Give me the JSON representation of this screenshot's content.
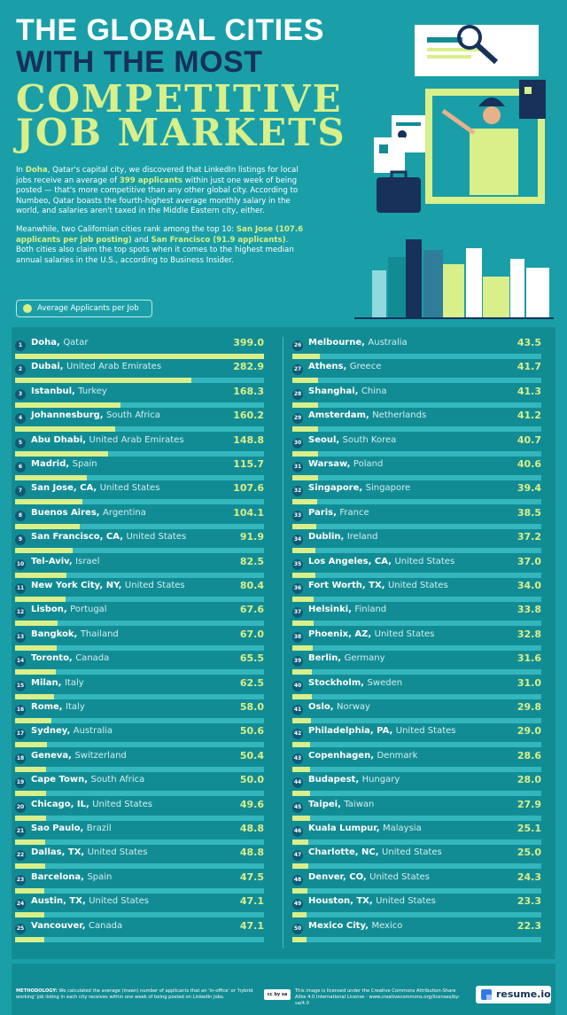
{
  "title": {
    "line1": "THE GLOBAL CITIES",
    "line2": "WITH THE MOST",
    "line3": "COMPETITIVE",
    "line4": "JOB MARKETS"
  },
  "intro": {
    "p1_a": "In ",
    "p1_city": "Doha",
    "p1_b": ", Qatar's capital city, we discovered that LinkedIn listings for local jobs receive an average of ",
    "p1_hl": "399 applicants",
    "p1_c": " within just one week of being posted — that's more competitive than any other global city. According to Numbeo, Qatar boasts the fourth-highest average monthly salary in the world, and salaries aren't taxed in the Middle Eastern city, either.",
    "p2_a": "Meanwhile, two Californian cities rank among the top 10: ",
    "p2_hl1": "San Jose (107.6 applicants per job posting)",
    "p2_b": " and ",
    "p2_hl2": "San Francisco (91.9 applicants)",
    "p2_c": ". Both cities also claim the top spots when it comes to the highest median annual salaries in the U.S., according to Business Insider."
  },
  "legend": {
    "label": "Average Applicants per Job",
    "color": "#d9ef8a"
  },
  "colors": {
    "background": "#1a9fa8",
    "panel": "#128c94",
    "bar": "#d9ef8a",
    "track": "#33b6bd",
    "title_dark": "#17315a"
  },
  "chart_data": {
    "type": "bar",
    "series_name": "Average Applicants per Job",
    "rows": [
      {
        "rank": "1",
        "city": "Doha,",
        "country": "Qatar",
        "value": 399.0,
        "label": "399.0"
      },
      {
        "rank": "2",
        "city": "Dubai,",
        "country": "United Arab Emirates",
        "value": 282.9,
        "label": "282.9"
      },
      {
        "rank": "3",
        "city": "Istanbul,",
        "country": "Turkey",
        "value": 168.3,
        "label": "168.3"
      },
      {
        "rank": "4",
        "city": "Johannesburg,",
        "country": "South Africa",
        "value": 160.2,
        "label": "160.2"
      },
      {
        "rank": "5",
        "city": "Abu Dhabi,",
        "country": "United Arab Emirates",
        "value": 148.8,
        "label": "148.8"
      },
      {
        "rank": "6",
        "city": "Madrid,",
        "country": "Spain",
        "value": 115.7,
        "label": "115.7"
      },
      {
        "rank": "7",
        "city": "San Jose, CA,",
        "country": "United States",
        "value": 107.6,
        "label": "107.6"
      },
      {
        "rank": "8",
        "city": "Buenos Aires,",
        "country": "Argentina",
        "value": 104.1,
        "label": "104.1"
      },
      {
        "rank": "9",
        "city": "San Francisco, CA,",
        "country": "United States",
        "value": 91.9,
        "label": "91.9"
      },
      {
        "rank": "10",
        "city": "Tel-Aviv,",
        "country": "Israel",
        "value": 82.5,
        "label": "82.5"
      },
      {
        "rank": "11",
        "city": "New York City, NY,",
        "country": "United States",
        "value": 80.4,
        "label": "80.4"
      },
      {
        "rank": "12",
        "city": "Lisbon,",
        "country": "Portugal",
        "value": 67.6,
        "label": "67.6"
      },
      {
        "rank": "13",
        "city": "Bangkok,",
        "country": "Thailand",
        "value": 67.0,
        "label": "67.0"
      },
      {
        "rank": "14",
        "city": "Toronto,",
        "country": "Canada",
        "value": 65.5,
        "label": "65.5"
      },
      {
        "rank": "15",
        "city": "Milan,",
        "country": "Italy",
        "value": 62.5,
        "label": "62.5"
      },
      {
        "rank": "16",
        "city": "Rome,",
        "country": "Italy",
        "value": 58.0,
        "label": "58.0"
      },
      {
        "rank": "17",
        "city": "Sydney,",
        "country": "Australia",
        "value": 50.6,
        "label": "50.6"
      },
      {
        "rank": "18",
        "city": "Geneva,",
        "country": "Switzerland",
        "value": 50.4,
        "label": "50.4"
      },
      {
        "rank": "19",
        "city": "Cape Town,",
        "country": "South Africa",
        "value": 50.0,
        "label": "50.0"
      },
      {
        "rank": "20",
        "city": "Chicago, IL,",
        "country": "United States",
        "value": 49.6,
        "label": "49.6"
      },
      {
        "rank": "21",
        "city": "Sao Paulo,",
        "country": "Brazil",
        "value": 48.8,
        "label": "48.8"
      },
      {
        "rank": "22",
        "city": "Dallas, TX,",
        "country": "United States",
        "value": 48.8,
        "label": "48.8"
      },
      {
        "rank": "23",
        "city": "Barcelona,",
        "country": "Spain",
        "value": 47.5,
        "label": "47.5"
      },
      {
        "rank": "24",
        "city": "Austin, TX,",
        "country": "United States",
        "value": 47.1,
        "label": "47.1"
      },
      {
        "rank": "25",
        "city": "Vancouver,",
        "country": "Canada",
        "value": 47.1,
        "label": "47.1"
      },
      {
        "rank": "26",
        "city": "Melbourne,",
        "country": "Australia",
        "value": 43.5,
        "label": "43.5"
      },
      {
        "rank": "27",
        "city": "Athens,",
        "country": "Greece",
        "value": 41.7,
        "label": "41.7"
      },
      {
        "rank": "28",
        "city": "Shanghai,",
        "country": "China",
        "value": 41.3,
        "label": "41.3"
      },
      {
        "rank": "29",
        "city": "Amsterdam,",
        "country": "Netherlands",
        "value": 41.2,
        "label": "41.2"
      },
      {
        "rank": "30",
        "city": "Seoul,",
        "country": "South Korea",
        "value": 40.7,
        "label": "40.7"
      },
      {
        "rank": "31",
        "city": "Warsaw,",
        "country": "Poland",
        "value": 40.6,
        "label": "40.6"
      },
      {
        "rank": "32",
        "city": "Singapore,",
        "country": "Singapore",
        "value": 39.4,
        "label": "39.4"
      },
      {
        "rank": "33",
        "city": "Paris,",
        "country": "France",
        "value": 38.5,
        "label": "38.5"
      },
      {
        "rank": "34",
        "city": "Dublin,",
        "country": "Ireland",
        "value": 37.2,
        "label": "37.2"
      },
      {
        "rank": "35",
        "city": "Los Angeles, CA,",
        "country": "United States",
        "value": 37.0,
        "label": "37.0"
      },
      {
        "rank": "36",
        "city": "Fort Worth, TX,",
        "country": "United States",
        "value": 34.0,
        "label": "34.0"
      },
      {
        "rank": "37",
        "city": "Helsinki,",
        "country": "Finland",
        "value": 33.8,
        "label": "33.8"
      },
      {
        "rank": "38",
        "city": "Phoenix, AZ,",
        "country": "United States",
        "value": 32.8,
        "label": "32.8"
      },
      {
        "rank": "39",
        "city": "Berlin,",
        "country": "Germany",
        "value": 31.6,
        "label": "31.6"
      },
      {
        "rank": "40",
        "city": "Stockholm,",
        "country": "Sweden",
        "value": 31.0,
        "label": "31.0"
      },
      {
        "rank": "41",
        "city": "Oslo,",
        "country": "Norway",
        "value": 29.8,
        "label": "29.8"
      },
      {
        "rank": "42",
        "city": "Philadelphia, PA,",
        "country": "United States",
        "value": 29.0,
        "label": "29.0"
      },
      {
        "rank": "43",
        "city": "Copenhagen,",
        "country": "Denmark",
        "value": 28.6,
        "label": "28.6"
      },
      {
        "rank": "44",
        "city": "Budapest,",
        "country": "Hungary",
        "value": 28.0,
        "label": "28.0"
      },
      {
        "rank": "45",
        "city": "Taipei,",
        "country": "Taiwan",
        "value": 27.9,
        "label": "27.9"
      },
      {
        "rank": "46",
        "city": "Kuala Lumpur,",
        "country": "Malaysia",
        "value": 25.1,
        "label": "25.1"
      },
      {
        "rank": "47",
        "city": "Charlotte, NC,",
        "country": "United States",
        "value": 25.0,
        "label": "25.0"
      },
      {
        "rank": "48",
        "city": "Denver, CO,",
        "country": "United States",
        "value": 24.3,
        "label": "24.3"
      },
      {
        "rank": "49",
        "city": "Houston, TX,",
        "country": "United States",
        "value": 23.3,
        "label": "23.3"
      },
      {
        "rank": "50",
        "city": "Mexico City,",
        "country": "Mexico",
        "value": 22.3,
        "label": "22.3"
      }
    ]
  },
  "footer": {
    "methodology_label": "METHODOLOGY:",
    "methodology_text": " We calculated the average (mean) number of applicants that an 'in-office' or 'hybrid working' job listing in each city receives within one week of being posted on LinkedIn Jobs.",
    "cc_badge": "cc by sa",
    "license_text": "This image is licensed under the Creative Commons Attribution-Share Alike 4.0 International License - www.creativecommons.org/licenses/by-sa/4.0",
    "brand": "resume.io"
  }
}
